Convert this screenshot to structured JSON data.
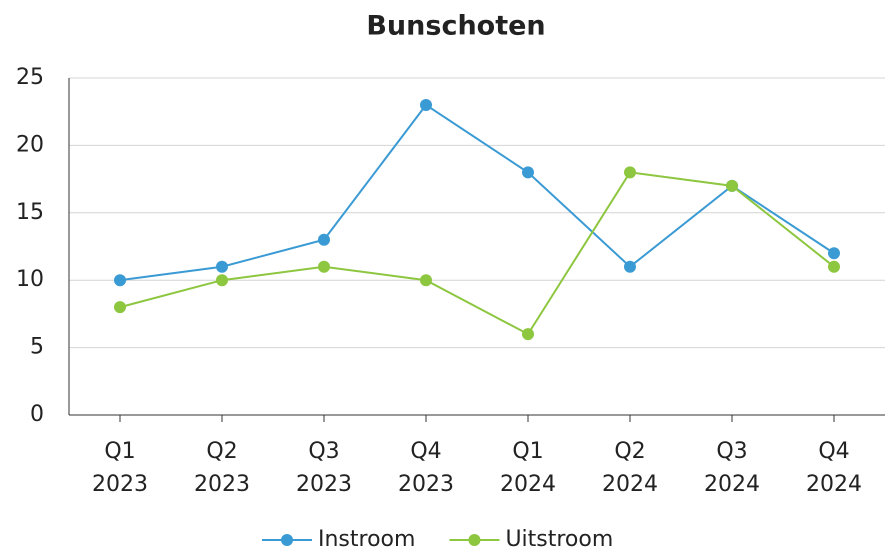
{
  "chart_data": {
    "type": "line",
    "title": "Bunschoten",
    "categories": [
      "Q1 2023",
      "Q2 2023",
      "Q3 2023",
      "Q4 2023",
      "Q1 2024",
      "Q2 2024",
      "Q3 2024",
      "Q4 2024"
    ],
    "series": [
      {
        "name": "Instroom",
        "color": "#3a9ad4",
        "values": [
          10,
          11,
          13,
          23,
          18,
          11,
          17,
          12
        ]
      },
      {
        "name": "Uitstroom",
        "color": "#8dc63f",
        "values": [
          8,
          10,
          11,
          10,
          6,
          18,
          17,
          11
        ]
      }
    ],
    "ylim": [
      0,
      25
    ],
    "yticks": [
      0,
      5,
      10,
      15,
      20,
      25
    ],
    "grid": true,
    "legend": "bottom"
  }
}
